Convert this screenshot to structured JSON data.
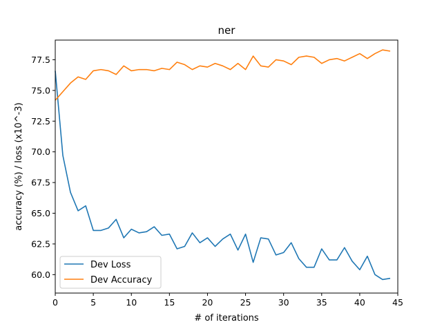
{
  "chart_data": {
    "type": "line",
    "title": "ner",
    "xlabel": "# of iterations",
    "ylabel": "accuracy (%) / loss (x10^-3)",
    "xlim": [
      0,
      45
    ],
    "ylim": [
      58.5,
      79.1
    ],
    "xticks": [
      0,
      5,
      10,
      15,
      20,
      25,
      30,
      35,
      40,
      45
    ],
    "yticks": [
      60.0,
      62.5,
      65.0,
      67.5,
      70.0,
      72.5,
      75.0,
      77.5
    ],
    "grid": false,
    "legend_position": "lower-left",
    "x": [
      0,
      1,
      2,
      3,
      4,
      5,
      6,
      7,
      8,
      9,
      10,
      11,
      12,
      13,
      14,
      15,
      16,
      17,
      18,
      19,
      20,
      21,
      22,
      23,
      24,
      25,
      26,
      27,
      28,
      29,
      30,
      31,
      32,
      33,
      34,
      35,
      36,
      37,
      38,
      39,
      40,
      41,
      42,
      43,
      44
    ],
    "series": [
      {
        "name": "Dev Loss",
        "color": "#1f77b4",
        "values": [
          76.6,
          69.7,
          66.7,
          65.2,
          65.6,
          63.6,
          63.6,
          63.8,
          64.5,
          63.0,
          63.7,
          63.4,
          63.5,
          63.9,
          63.2,
          63.3,
          62.1,
          62.3,
          63.4,
          62.6,
          63.0,
          62.3,
          62.9,
          63.3,
          62.0,
          63.3,
          61.0,
          63.0,
          62.9,
          61.6,
          61.8,
          62.6,
          61.3,
          60.6,
          60.6,
          62.1,
          61.2,
          61.2,
          62.2,
          61.1,
          60.4,
          61.5,
          60.0,
          59.6,
          59.7
        ]
      },
      {
        "name": "Dev Accuracy",
        "color": "#ff7f0e",
        "values": [
          74.2,
          74.9,
          75.6,
          76.1,
          75.9,
          76.6,
          76.7,
          76.6,
          76.3,
          77.0,
          76.6,
          76.7,
          76.7,
          76.6,
          76.8,
          76.7,
          77.3,
          77.1,
          76.7,
          77.0,
          76.9,
          77.2,
          77.0,
          76.7,
          77.2,
          76.7,
          77.8,
          77.0,
          76.9,
          77.5,
          77.4,
          77.1,
          77.7,
          77.8,
          77.7,
          77.2,
          77.5,
          77.6,
          77.4,
          77.7,
          78.0,
          77.6,
          78.0,
          78.3,
          78.2
        ]
      }
    ]
  }
}
